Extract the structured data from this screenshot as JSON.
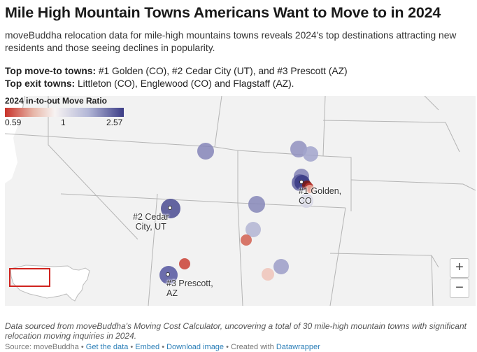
{
  "header": {
    "title": "Mile High Mountain Towns Americans Want to Move to in 2024",
    "description": "moveBuddha relocation data for mile-high mountains towns reveals 2024's top destinations attracting new residents and those seeing declines in popularity.",
    "top_move_to_label": "Top move-to towns:",
    "top_move_to_text": " #1 Golden (CO), #2 Cedar City (UT), and #3 Prescott (AZ)",
    "top_exit_label": "Top exit towns:",
    "top_exit_text": " Littleton (CO), Englewood (CO) and Flagstaff (AZ)."
  },
  "legend": {
    "title": "2024 in-to-out Move Ratio",
    "min": "0.59",
    "mid": "1",
    "max": "2.57",
    "color_low": "#c8322a",
    "color_mid": "#f7f3f2",
    "color_high": "#3c3d86"
  },
  "map": {
    "labels": {
      "golden_line1": "#1 Golden,",
      "golden_line2": "CO",
      "cedar_line1": "#2 Cedar",
      "cedar_line2": "City, UT",
      "prescott_line1": "#3 Prescott,",
      "prescott_line2": "AZ"
    },
    "zoom_in": "+",
    "zoom_out": "−",
    "towns": [
      {
        "ratio": 1.85,
        "color": "#8585b8"
      },
      {
        "ratio": 1.75,
        "color": "#9191c0"
      },
      {
        "ratio": 1.55,
        "color": "#a2a4cc"
      },
      {
        "ratio": 1.85,
        "color": "#8283b6"
      },
      {
        "ratio": 2.2,
        "color": "#5f60a0"
      },
      {
        "ratio": 2.57,
        "color": "#3c3d86"
      },
      {
        "ratio": 0.59,
        "color": "#7a1a14"
      },
      {
        "ratio": 0.62,
        "color": "#b8322a"
      },
      {
        "ratio": 0.8,
        "color": "#e8a798"
      },
      {
        "ratio": 1.2,
        "color": "#d5d5e6"
      },
      {
        "ratio": 2.45,
        "color": "#4a4b92"
      },
      {
        "ratio": 1.85,
        "color": "#8687b8"
      },
      {
        "ratio": 1.4,
        "color": "#b3b5d4"
      },
      {
        "ratio": 0.7,
        "color": "#d4685a"
      },
      {
        "ratio": 0.65,
        "color": "#cc4a3f"
      },
      {
        "ratio": 2.3,
        "color": "#5556a0"
      },
      {
        "ratio": 1.6,
        "color": "#9c9dc8"
      },
      {
        "ratio": 0.85,
        "color": "#efc6bc"
      }
    ]
  },
  "note": "Data sourced from moveBuddha's Moving Cost Calculator, uncovering a total of 30 mile-high mountain towns with significant relocation moving inquiries in 2024.",
  "footer": {
    "source": "Source: moveBuddha",
    "sep": " • ",
    "get_data": "Get the data",
    "embed": "Embed",
    "download": "Download image",
    "created": "Created with ",
    "datawrapper": "Datawrapper"
  }
}
